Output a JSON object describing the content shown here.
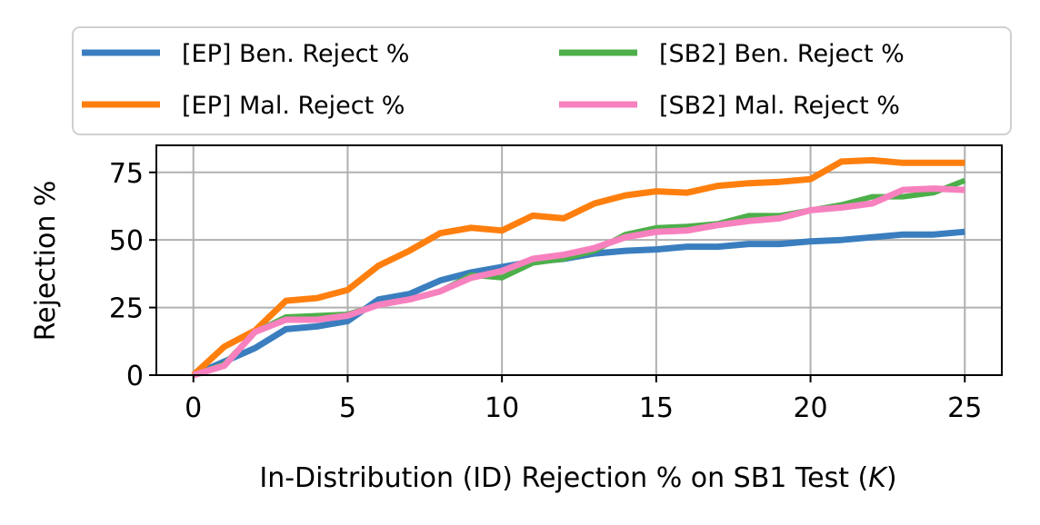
{
  "chart_data": {
    "type": "line",
    "title": "",
    "xlabel": "In-Distribution (ID) Rejection % on SB1 Test (",
    "xlabel_italic": "K",
    "xlabel_suffix": ")",
    "ylabel": "Rejection %",
    "xlim": [
      -1.2,
      26.2
    ],
    "ylim": [
      0,
      85
    ],
    "xticks": [
      0,
      5,
      10,
      15,
      20,
      25
    ],
    "yticks": [
      0,
      25,
      50,
      75
    ],
    "grid": true,
    "legend_position": "top",
    "x": [
      0,
      1,
      2,
      3,
      4,
      5,
      6,
      7,
      8,
      9,
      10,
      11,
      12,
      13,
      14,
      15,
      16,
      17,
      18,
      19,
      20,
      21,
      22,
      23,
      24,
      25
    ],
    "series": [
      {
        "name": "[EP] Ben. Reject %",
        "color": "#3a7ebf",
        "values": [
          0,
          5,
          10,
          17,
          18,
          20,
          28,
          30,
          35,
          38,
          40,
          42,
          43,
          45,
          46,
          46.5,
          47.5,
          47.5,
          48.5,
          48.5,
          49.5,
          50,
          51,
          52,
          52,
          53
        ]
      },
      {
        "name": "[EP] Mal. Reject %",
        "color": "#ff7f0e",
        "values": [
          0,
          10.5,
          16.5,
          27.5,
          28.5,
          31.5,
          40.5,
          46,
          52.5,
          54.5,
          53.5,
          59,
          58,
          63.5,
          66.5,
          68,
          67.5,
          70,
          71,
          71.5,
          72.5,
          79,
          79.5,
          78.5,
          78.5,
          78.5
        ]
      },
      {
        "name": "[SB2] Ben. Reject %",
        "color": "#4daf4a",
        "values": [
          0,
          4,
          16,
          21.5,
          22,
          22.5,
          26,
          28,
          31,
          37,
          36,
          41.5,
          43,
          46,
          52,
          54.5,
          55,
          56,
          59,
          59,
          61,
          63,
          66,
          66,
          67.5,
          72
        ]
      },
      {
        "name": "[SB2] Mal. Reject %",
        "color": "#f781bf",
        "values": [
          0,
          3.5,
          16,
          20.5,
          20.5,
          22,
          26,
          28,
          31,
          36,
          38.5,
          43,
          44.5,
          47,
          51,
          53,
          53.5,
          55.5,
          57,
          58,
          61,
          62,
          63.5,
          68.5,
          69,
          68.5
        ]
      }
    ]
  }
}
